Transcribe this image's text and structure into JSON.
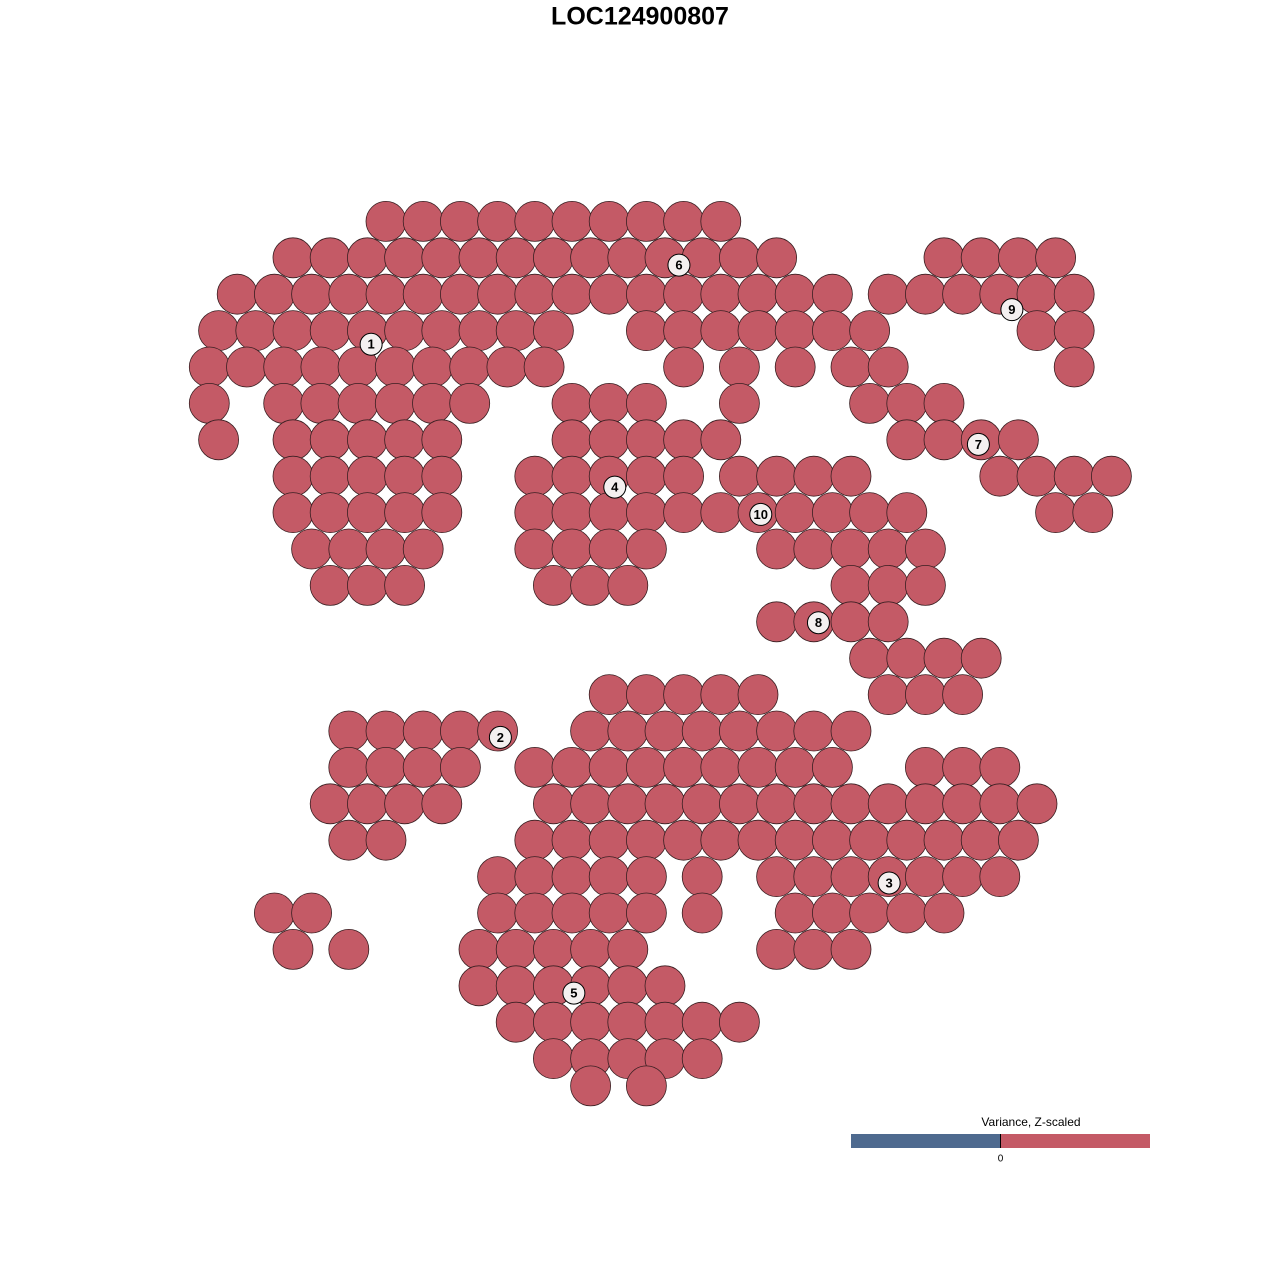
{
  "chart_data": {
    "type": "scatter",
    "title": "LOC124900807",
    "color": "#c45a66",
    "xlim": [
      0,
      100
    ],
    "ylim": [
      0,
      100
    ],
    "x": [
      20,
      24,
      28,
      32,
      36,
      40,
      44,
      48,
      52,
      56,
      10,
      14,
      18,
      22,
      26,
      30,
      34,
      38,
      42,
      46,
      50,
      54,
      58,
      62,
      80,
      84,
      88,
      92,
      4,
      8,
      12,
      16,
      20,
      24,
      28,
      32,
      36,
      40,
      44,
      48,
      52,
      56,
      60,
      64,
      68,
      74,
      78,
      82,
      86,
      90,
      94,
      2,
      6,
      10,
      14,
      18,
      22,
      26,
      30,
      34,
      38,
      48,
      52,
      56,
      60,
      64,
      68,
      72,
      90,
      94,
      1,
      5,
      9,
      13,
      17,
      21,
      25,
      29,
      33,
      37,
      52,
      58,
      64,
      70,
      74,
      94,
      1,
      9,
      13,
      17,
      21,
      25,
      29,
      40,
      44,
      48,
      58,
      72,
      76,
      80,
      2,
      10,
      14,
      18,
      22,
      26,
      40,
      44,
      48,
      52,
      56,
      76,
      80,
      84,
      88,
      10,
      14,
      18,
      22,
      26,
      36,
      40,
      44,
      48,
      52,
      58,
      62,
      66,
      70,
      86,
      90,
      94,
      98,
      10,
      14,
      18,
      22,
      26,
      36,
      40,
      44,
      48,
      52,
      56,
      60,
      64,
      68,
      72,
      76,
      92,
      96,
      12,
      16,
      20,
      24,
      36,
      40,
      44,
      48,
      62,
      66,
      70,
      74,
      78,
      14,
      18,
      22,
      38,
      42,
      46,
      70,
      74,
      78,
      62,
      66,
      70,
      74,
      72,
      76,
      80,
      84,
      44,
      48,
      52,
      56,
      60,
      74,
      78,
      82,
      16,
      20,
      24,
      28,
      32,
      42,
      46,
      50,
      54,
      58,
      62,
      66,
      70,
      16,
      20,
      24,
      28,
      36,
      40,
      44,
      48,
      52,
      56,
      60,
      64,
      68,
      78,
      82,
      86,
      14,
      18,
      22,
      26,
      38,
      42,
      46,
      50,
      54,
      58,
      62,
      66,
      70,
      74,
      78,
      82,
      86,
      90,
      16,
      20,
      36,
      40,
      44,
      48,
      52,
      56,
      60,
      64,
      68,
      72,
      76,
      80,
      84,
      88,
      32,
      36,
      40,
      44,
      48,
      54,
      62,
      66,
      70,
      74,
      78,
      82,
      86,
      8,
      12,
      32,
      36,
      40,
      44,
      48,
      54,
      64,
      68,
      72,
      76,
      80,
      10,
      16,
      30,
      34,
      38,
      42,
      46,
      62,
      66,
      70,
      30,
      34,
      38,
      42,
      46,
      50,
      34,
      38,
      42,
      46,
      50,
      54,
      58,
      38,
      42,
      46,
      50,
      54,
      42,
      48
    ],
    "y": [
      96,
      96,
      96,
      96,
      96,
      96,
      96,
      96,
      96,
      96,
      92,
      92,
      92,
      92,
      92,
      92,
      92,
      92,
      92,
      92,
      92,
      92,
      92,
      92,
      92,
      92,
      92,
      92,
      88,
      88,
      88,
      88,
      88,
      88,
      88,
      88,
      88,
      88,
      88,
      88,
      88,
      88,
      88,
      88,
      88,
      88,
      88,
      88,
      88,
      88,
      88,
      84,
      84,
      84,
      84,
      84,
      84,
      84,
      84,
      84,
      84,
      84,
      84,
      84,
      84,
      84,
      84,
      84,
      84,
      84,
      80,
      80,
      80,
      80,
      80,
      80,
      80,
      80,
      80,
      80,
      80,
      80,
      80,
      80,
      80,
      80,
      76,
      76,
      76,
      76,
      76,
      76,
      76,
      76,
      76,
      76,
      76,
      76,
      76,
      76,
      72,
      72,
      72,
      72,
      72,
      72,
      72,
      72,
      72,
      72,
      72,
      72,
      72,
      72,
      72,
      68,
      68,
      68,
      68,
      68,
      68,
      68,
      68,
      68,
      68,
      68,
      68,
      68,
      68,
      68,
      68,
      68,
      68,
      64,
      64,
      64,
      64,
      64,
      64,
      64,
      64,
      64,
      64,
      64,
      64,
      64,
      64,
      64,
      64,
      64,
      64,
      60,
      60,
      60,
      60,
      60,
      60,
      60,
      60,
      60,
      60,
      60,
      60,
      60,
      56,
      56,
      56,
      56,
      56,
      56,
      56,
      56,
      56,
      52,
      52,
      52,
      52,
      48,
      48,
      48,
      48,
      44,
      44,
      44,
      44,
      44,
      44,
      44,
      44,
      40,
      40,
      40,
      40,
      40,
      40,
      40,
      40,
      40,
      40,
      40,
      40,
      40,
      36,
      36,
      36,
      36,
      36,
      36,
      36,
      36,
      36,
      36,
      36,
      36,
      36,
      36,
      36,
      36,
      32,
      32,
      32,
      32,
      32,
      32,
      32,
      32,
      32,
      32,
      32,
      32,
      32,
      32,
      32,
      32,
      32,
      32,
      28,
      28,
      28,
      28,
      28,
      28,
      28,
      28,
      28,
      28,
      28,
      28,
      28,
      28,
      28,
      28,
      24,
      24,
      24,
      24,
      24,
      24,
      24,
      24,
      24,
      24,
      24,
      24,
      24,
      20,
      20,
      20,
      20,
      20,
      20,
      20,
      20,
      20,
      20,
      20,
      20,
      20,
      16,
      16,
      16,
      16,
      16,
      16,
      16,
      16,
      16,
      16,
      12,
      12,
      12,
      12,
      12,
      12,
      8,
      8,
      8,
      8,
      8,
      8,
      8,
      4,
      4,
      4,
      4,
      4,
      1,
      1
    ],
    "clusters": [
      {
        "label": "1",
        "x": 18.4,
        "y": 82.5
      },
      {
        "label": "2",
        "x": 32.3,
        "y": 39.3
      },
      {
        "label": "3",
        "x": 74.1,
        "y": 23.3
      },
      {
        "label": "4",
        "x": 44.6,
        "y": 66.8
      },
      {
        "label": "5",
        "x": 40.2,
        "y": 11.2
      },
      {
        "label": "6",
        "x": 51.5,
        "y": 91.2
      },
      {
        "label": "7",
        "x": 83.7,
        "y": 71.5
      },
      {
        "label": "8",
        "x": 66.5,
        "y": 51.9
      },
      {
        "label": "9",
        "x": 87.3,
        "y": 86.3
      },
      {
        "label": "10",
        "x": 60.3,
        "y": 63.8
      }
    ],
    "legend": {
      "title": "Variance, Z-scaled",
      "colors": [
        "#4e6a8f",
        "#c45a66"
      ],
      "ticks": [
        0
      ]
    }
  }
}
